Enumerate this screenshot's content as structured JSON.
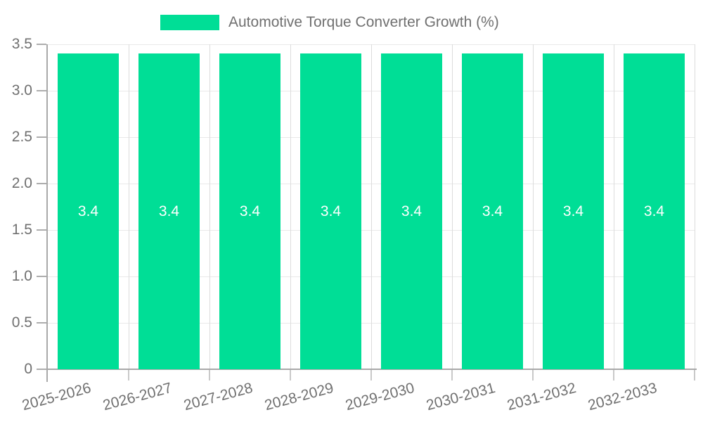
{
  "legend": {
    "label": "Automotive Torque Converter Growth (%)"
  },
  "colors": {
    "bar": "#00DE96",
    "value_label": "#FFFFFF",
    "label_text": "#707070",
    "axis": "#A9A9A9",
    "grid_horizontal": "#E9E9E9",
    "grid_vertical": "#DCDCDC",
    "background": "#FFFFFF"
  },
  "chart_data": {
    "type": "bar",
    "title": "Automotive Torque Converter Growth (%)",
    "categories": [
      "2025-2026",
      "2026-2027",
      "2027-2028",
      "2028-2029",
      "2029-2030",
      "2030-2031",
      "2031-2032",
      "2032-2033"
    ],
    "series": [
      {
        "name": "Automotive Torque Converter Growth (%)",
        "values": [
          3.4,
          3.4,
          3.4,
          3.4,
          3.4,
          3.4,
          3.4,
          3.4
        ]
      }
    ],
    "value_labels": [
      "3.4",
      "3.4",
      "3.4",
      "3.4",
      "3.4",
      "3.4",
      "3.4",
      "3.4"
    ],
    "xlabel": "",
    "ylabel": "",
    "ylim": [
      0,
      3.5
    ],
    "ytick_values": [
      0,
      0.5,
      1,
      1.5,
      2,
      2.5,
      3,
      3.5
    ],
    "ytick_labels": [
      "0",
      "0.5",
      "1.0",
      "1.5",
      "2.0",
      "2.5",
      "3.0",
      "3.5"
    ],
    "x_label_rotation_deg": 15,
    "grid": true,
    "legend_position": "top-center",
    "value_label_position": "inside-center"
  }
}
